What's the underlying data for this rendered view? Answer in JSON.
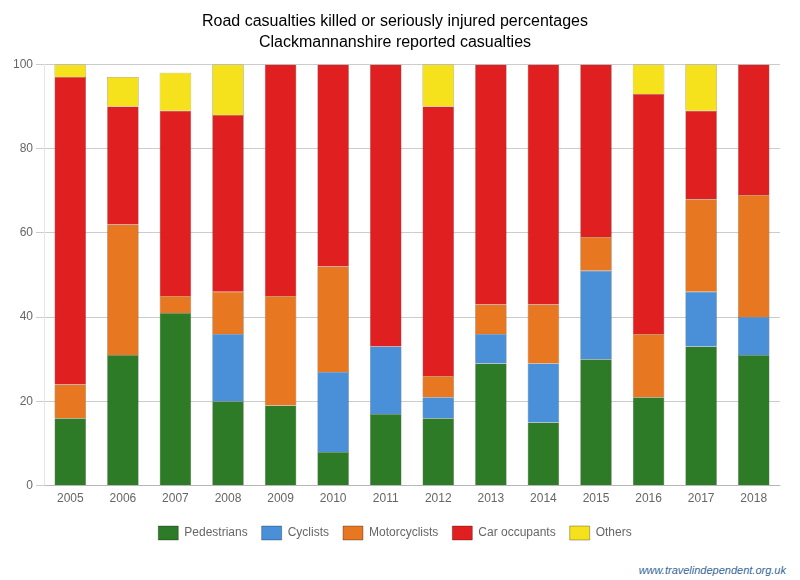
{
  "chart_data": {
    "type": "bar",
    "stacked": true,
    "title": "Road casualties killed or seriously injured percentages",
    "subtitle": "Clackmannanshire reported casualties",
    "categories": [
      "2005",
      "2006",
      "2007",
      "2008",
      "2009",
      "2010",
      "2011",
      "2012",
      "2013",
      "2014",
      "2015",
      "2016",
      "2017",
      "2018"
    ],
    "series": [
      {
        "name": "Pedestrians",
        "color": "#2d7a27",
        "values": [
          16,
          31,
          41,
          20,
          19,
          8,
          17,
          16,
          29,
          15,
          30,
          21,
          33,
          31
        ]
      },
      {
        "name": "Cyclists",
        "color": "#4a90d9",
        "values": [
          0,
          0,
          0,
          16,
          0,
          19,
          16,
          5,
          7,
          14,
          21,
          0,
          13,
          9
        ]
      },
      {
        "name": "Motorcyclists",
        "color": "#e87722",
        "values": [
          8,
          31,
          4,
          10,
          26,
          25,
          0,
          5,
          7,
          14,
          8,
          15,
          22,
          29
        ]
      },
      {
        "name": "Car occupants",
        "color": "#e02020",
        "values": [
          73,
          28,
          44,
          42,
          55,
          48,
          67,
          64,
          57,
          57,
          41,
          57,
          21,
          31
        ]
      },
      {
        "name": "Others",
        "color": "#f5e21c",
        "values": [
          3,
          7,
          9,
          12,
          0,
          0,
          0,
          10,
          0,
          0,
          0,
          7,
          11,
          0
        ]
      }
    ],
    "ylim": [
      0,
      100
    ],
    "yticks": [
      0,
      20,
      40,
      60,
      80,
      100
    ],
    "grid": "y",
    "legend": "bottom",
    "annotations": [
      "www.travelindependent.org.uk"
    ]
  }
}
